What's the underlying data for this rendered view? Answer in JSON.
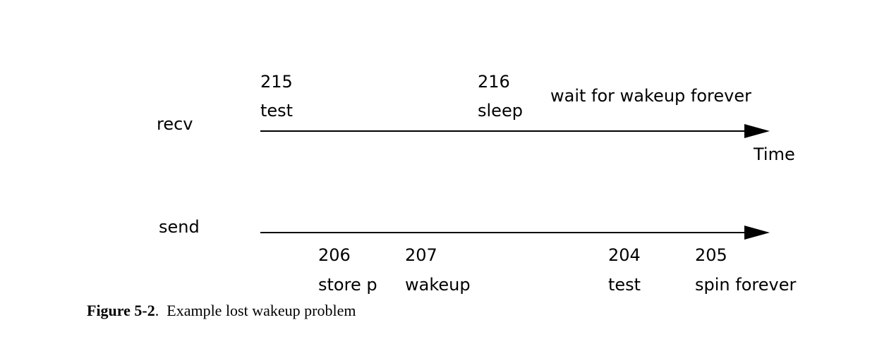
{
  "recv": {
    "name": "recv",
    "events": [
      {
        "line": "215",
        "label": "test"
      },
      {
        "line": "216",
        "label": "sleep"
      }
    ],
    "note": "wait for wakeup forever",
    "axis_label": "Time"
  },
  "send": {
    "name": "send",
    "events": [
      {
        "line": "206",
        "label": "store p"
      },
      {
        "line": "207",
        "label": "wakeup"
      },
      {
        "line": "204",
        "label": "test"
      },
      {
        "line": "205",
        "label": "spin forever"
      }
    ]
  },
  "caption": {
    "label": "Figure 5-2",
    "separator": ".",
    "text": "Example lost wakeup problem"
  }
}
